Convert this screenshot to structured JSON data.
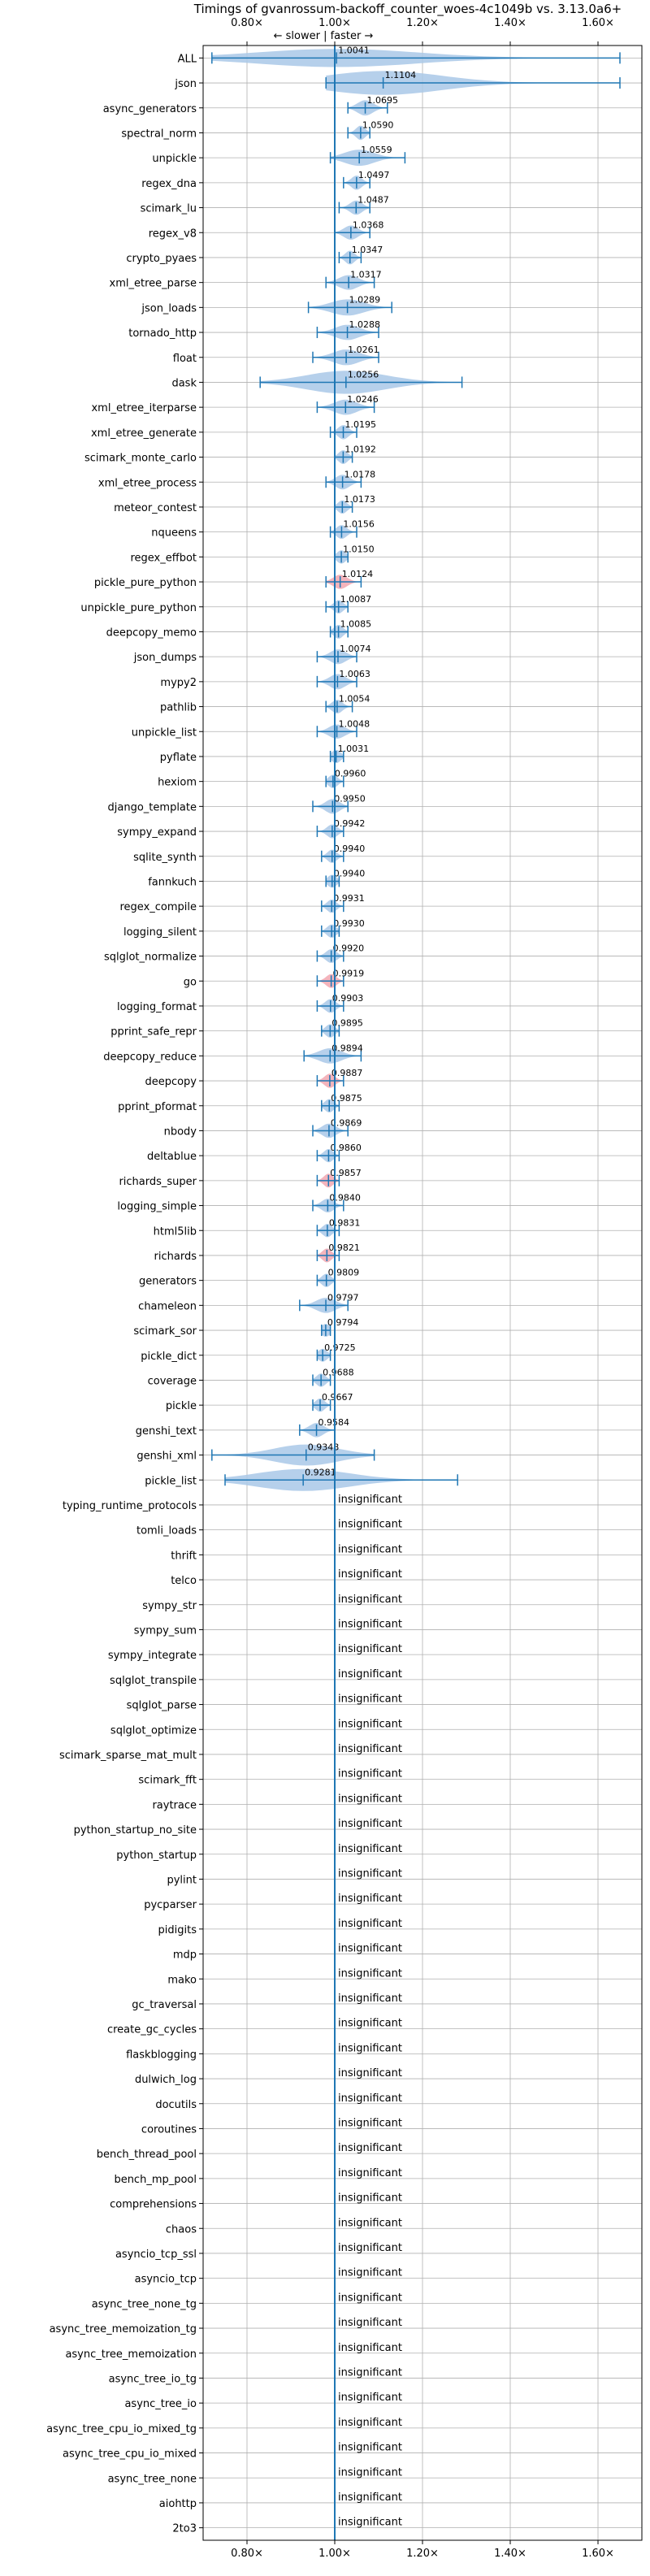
{
  "chart_data": {
    "type": "violin",
    "title": "Timings of gvanrossum-backoff_counter_woes-4c1049b vs. 3.13.0a6+",
    "direction_label": "← slower | faster →",
    "x_ticks": [
      "0.80×",
      "1.00×",
      "1.20×",
      "1.40×",
      "1.60×"
    ],
    "x_tick_values": [
      0.8,
      1.0,
      1.2,
      1.4,
      1.6
    ],
    "xlim": [
      0.7,
      1.7
    ],
    "grid": true,
    "insignificant_label": "insignificant",
    "colors": {
      "violin": "#a9c8e8",
      "violin_slower": "#f2a7b0",
      "line": "#1f77b4",
      "grid": "#b0b0b0"
    },
    "benchmarks": [
      {
        "name": "ALL",
        "value": 1.0041,
        "label": "1.0041",
        "min": 0.72,
        "max": 1.65,
        "spread": 0.07
      },
      {
        "name": "json",
        "value": 1.1104,
        "label": "1.1104",
        "min": 0.98,
        "max": 1.65,
        "spread": 0.15
      },
      {
        "name": "async_generators",
        "value": 1.0695,
        "label": "1.0695",
        "min": 1.03,
        "max": 1.12,
        "spread": 0.04
      },
      {
        "name": "spectral_norm",
        "value": 1.059,
        "label": "1.0590",
        "min": 1.03,
        "max": 1.08,
        "spread": 0.03
      },
      {
        "name": "unpickle",
        "value": 1.0559,
        "label": "1.0559",
        "min": 0.99,
        "max": 1.16,
        "spread": 0.05
      },
      {
        "name": "regex_dna",
        "value": 1.0497,
        "label": "1.0497",
        "min": 1.02,
        "max": 1.08,
        "spread": 0.03
      },
      {
        "name": "scimark_lu",
        "value": 1.0487,
        "label": "1.0487",
        "min": 1.01,
        "max": 1.08,
        "spread": 0.03
      },
      {
        "name": "regex_v8",
        "value": 1.0368,
        "label": "1.0368",
        "min": 1.0,
        "max": 1.08,
        "spread": 0.03
      },
      {
        "name": "crypto_pyaes",
        "value": 1.0347,
        "label": "1.0347",
        "min": 1.01,
        "max": 1.06,
        "spread": 0.025
      },
      {
        "name": "xml_etree_parse",
        "value": 1.0317,
        "label": "1.0317",
        "min": 0.98,
        "max": 1.09,
        "spread": 0.035
      },
      {
        "name": "json_loads",
        "value": 1.0289,
        "label": "1.0289",
        "min": 0.94,
        "max": 1.13,
        "spread": 0.05
      },
      {
        "name": "tornado_http",
        "value": 1.0288,
        "label": "1.0288",
        "min": 0.96,
        "max": 1.1,
        "spread": 0.04
      },
      {
        "name": "float",
        "value": 1.0261,
        "label": "1.0261",
        "min": 0.95,
        "max": 1.1,
        "spread": 0.045
      },
      {
        "name": "dask",
        "value": 1.0256,
        "label": "1.0256",
        "min": 0.83,
        "max": 1.29,
        "spread": 0.12
      },
      {
        "name": "xml_etree_iterparse",
        "value": 1.0246,
        "label": "1.0246",
        "min": 0.96,
        "max": 1.09,
        "spread": 0.04
      },
      {
        "name": "xml_etree_generate",
        "value": 1.0195,
        "label": "1.0195",
        "min": 0.99,
        "max": 1.05,
        "spread": 0.03
      },
      {
        "name": "scimark_monte_carlo",
        "value": 1.0192,
        "label": "1.0192",
        "min": 1.0,
        "max": 1.04,
        "spread": 0.025
      },
      {
        "name": "xml_etree_process",
        "value": 1.0178,
        "label": "1.0178",
        "min": 0.98,
        "max": 1.06,
        "spread": 0.035
      },
      {
        "name": "meteor_contest",
        "value": 1.0173,
        "label": "1.0173",
        "min": 1.0,
        "max": 1.04,
        "spread": 0.02
      },
      {
        "name": "nqueens",
        "value": 1.0156,
        "label": "1.0156",
        "min": 0.99,
        "max": 1.05,
        "spread": 0.025
      },
      {
        "name": "regex_effbot",
        "value": 1.015,
        "label": "1.0150",
        "min": 1.0,
        "max": 1.03,
        "spread": 0.02
      },
      {
        "name": "pickle_pure_python",
        "value": 1.0124,
        "label": "1.0124",
        "min": 0.98,
        "max": 1.06,
        "spread": 0.03,
        "slower": true
      },
      {
        "name": "unpickle_pure_python",
        "value": 1.0087,
        "label": "1.0087",
        "min": 0.98,
        "max": 1.03,
        "spread": 0.02
      },
      {
        "name": "deepcopy_memo",
        "value": 1.0085,
        "label": "1.0085",
        "min": 0.99,
        "max": 1.03,
        "spread": 0.025
      },
      {
        "name": "json_dumps",
        "value": 1.0074,
        "label": "1.0074",
        "min": 0.96,
        "max": 1.05,
        "spread": 0.035
      },
      {
        "name": "mypy2",
        "value": 1.0063,
        "label": "1.0063",
        "min": 0.96,
        "max": 1.05,
        "spread": 0.04
      },
      {
        "name": "pathlib",
        "value": 1.0054,
        "label": "1.0054",
        "min": 0.98,
        "max": 1.04,
        "spread": 0.025
      },
      {
        "name": "unpickle_list",
        "value": 1.0048,
        "label": "1.0048",
        "min": 0.96,
        "max": 1.05,
        "spread": 0.03
      },
      {
        "name": "pyflate",
        "value": 1.0031,
        "label": "1.0031",
        "min": 0.99,
        "max": 1.02,
        "spread": 0.02
      },
      {
        "name": "hexiom",
        "value": 0.996,
        "label": "0.9960",
        "min": 0.98,
        "max": 1.02,
        "spread": 0.02
      },
      {
        "name": "django_template",
        "value": 0.995,
        "label": "0.9950",
        "min": 0.95,
        "max": 1.03,
        "spread": 0.035
      },
      {
        "name": "sympy_expand",
        "value": 0.9942,
        "label": "0.9942",
        "min": 0.96,
        "max": 1.02,
        "spread": 0.025
      },
      {
        "name": "sqlite_synth",
        "value": 0.994,
        "label": "0.9940",
        "min": 0.97,
        "max": 1.02,
        "spread": 0.02
      },
      {
        "name": "fannkuch",
        "value": 0.994,
        "label": "0.9940",
        "min": 0.98,
        "max": 1.01,
        "spread": 0.015
      },
      {
        "name": "regex_compile",
        "value": 0.9931,
        "label": "0.9931",
        "min": 0.97,
        "max": 1.02,
        "spread": 0.02
      },
      {
        "name": "logging_silent",
        "value": 0.993,
        "label": "0.9930",
        "min": 0.97,
        "max": 1.01,
        "spread": 0.02
      },
      {
        "name": "sqlglot_normalize",
        "value": 0.992,
        "label": "0.9920",
        "min": 0.96,
        "max": 1.02,
        "spread": 0.025
      },
      {
        "name": "go",
        "value": 0.9919,
        "label": "0.9919",
        "min": 0.96,
        "max": 1.02,
        "spread": 0.025,
        "slower": true
      },
      {
        "name": "logging_format",
        "value": 0.9903,
        "label": "0.9903",
        "min": 0.96,
        "max": 1.02,
        "spread": 0.025
      },
      {
        "name": "pprint_safe_repr",
        "value": 0.9895,
        "label": "0.9895",
        "min": 0.97,
        "max": 1.01,
        "spread": 0.02
      },
      {
        "name": "deepcopy_reduce",
        "value": 0.9894,
        "label": "0.9894",
        "min": 0.93,
        "max": 1.06,
        "spread": 0.04
      },
      {
        "name": "deepcopy",
        "value": 0.9887,
        "label": "0.9887",
        "min": 0.96,
        "max": 1.02,
        "spread": 0.03,
        "slower": true
      },
      {
        "name": "pprint_pformat",
        "value": 0.9875,
        "label": "0.9875",
        "min": 0.97,
        "max": 1.01,
        "spread": 0.02
      },
      {
        "name": "nbody",
        "value": 0.9869,
        "label": "0.9869",
        "min": 0.95,
        "max": 1.03,
        "spread": 0.03
      },
      {
        "name": "deltablue",
        "value": 0.986,
        "label": "0.9860",
        "min": 0.96,
        "max": 1.01,
        "spread": 0.02
      },
      {
        "name": "richards_super",
        "value": 0.9857,
        "label": "0.9857",
        "min": 0.96,
        "max": 1.01,
        "spread": 0.025,
        "slower": true
      },
      {
        "name": "logging_simple",
        "value": 0.984,
        "label": "0.9840",
        "min": 0.95,
        "max": 1.02,
        "spread": 0.025
      },
      {
        "name": "html5lib",
        "value": 0.9831,
        "label": "0.9831",
        "min": 0.96,
        "max": 1.01,
        "spread": 0.02
      },
      {
        "name": "richards",
        "value": 0.9821,
        "label": "0.9821",
        "min": 0.96,
        "max": 1.01,
        "spread": 0.025,
        "slower": true
      },
      {
        "name": "generators",
        "value": 0.9809,
        "label": "0.9809",
        "min": 0.96,
        "max": 1.0,
        "spread": 0.02
      },
      {
        "name": "chameleon",
        "value": 0.9797,
        "label": "0.9797",
        "min": 0.92,
        "max": 1.03,
        "spread": 0.04
      },
      {
        "name": "scimark_sor",
        "value": 0.9794,
        "label": "0.9794",
        "min": 0.97,
        "max": 0.99,
        "spread": 0.015
      },
      {
        "name": "pickle_dict",
        "value": 0.9725,
        "label": "0.9725",
        "min": 0.96,
        "max": 0.99,
        "spread": 0.015
      },
      {
        "name": "coverage",
        "value": 0.9688,
        "label": "0.9688",
        "min": 0.95,
        "max": 0.99,
        "spread": 0.02
      },
      {
        "name": "pickle",
        "value": 0.9667,
        "label": "0.9667",
        "min": 0.95,
        "max": 0.99,
        "spread": 0.02
      },
      {
        "name": "genshi_text",
        "value": 0.9584,
        "label": "0.9584",
        "min": 0.92,
        "max": 1.0,
        "spread": 0.03
      },
      {
        "name": "genshi_xml",
        "value": 0.9348,
        "label": "0.9348",
        "min": 0.72,
        "max": 1.09,
        "spread": 0.1
      },
      {
        "name": "pickle_list",
        "value": 0.9281,
        "label": "0.9281",
        "min": 0.75,
        "max": 1.28,
        "spread": 0.11
      },
      {
        "name": "typing_runtime_protocols",
        "insignificant": true
      },
      {
        "name": "tomli_loads",
        "insignificant": true
      },
      {
        "name": "thrift",
        "insignificant": true
      },
      {
        "name": "telco",
        "insignificant": true
      },
      {
        "name": "sympy_str",
        "insignificant": true
      },
      {
        "name": "sympy_sum",
        "insignificant": true
      },
      {
        "name": "sympy_integrate",
        "insignificant": true
      },
      {
        "name": "sqlglot_transpile",
        "insignificant": true
      },
      {
        "name": "sqlglot_parse",
        "insignificant": true
      },
      {
        "name": "sqlglot_optimize",
        "insignificant": true
      },
      {
        "name": "scimark_sparse_mat_mult",
        "insignificant": true
      },
      {
        "name": "scimark_fft",
        "insignificant": true
      },
      {
        "name": "raytrace",
        "insignificant": true
      },
      {
        "name": "python_startup_no_site",
        "insignificant": true
      },
      {
        "name": "python_startup",
        "insignificant": true
      },
      {
        "name": "pylint",
        "insignificant": true
      },
      {
        "name": "pycparser",
        "insignificant": true
      },
      {
        "name": "pidigits",
        "insignificant": true
      },
      {
        "name": "mdp",
        "insignificant": true
      },
      {
        "name": "mako",
        "insignificant": true
      },
      {
        "name": "gc_traversal",
        "insignificant": true
      },
      {
        "name": "create_gc_cycles",
        "insignificant": true
      },
      {
        "name": "flaskblogging",
        "insignificant": true
      },
      {
        "name": "dulwich_log",
        "insignificant": true
      },
      {
        "name": "docutils",
        "insignificant": true
      },
      {
        "name": "coroutines",
        "insignificant": true
      },
      {
        "name": "bench_thread_pool",
        "insignificant": true
      },
      {
        "name": "bench_mp_pool",
        "insignificant": true
      },
      {
        "name": "comprehensions",
        "insignificant": true
      },
      {
        "name": "chaos",
        "insignificant": true
      },
      {
        "name": "asyncio_tcp_ssl",
        "insignificant": true
      },
      {
        "name": "asyncio_tcp",
        "insignificant": true
      },
      {
        "name": "async_tree_none_tg",
        "insignificant": true
      },
      {
        "name": "async_tree_memoization_tg",
        "insignificant": true
      },
      {
        "name": "async_tree_memoization",
        "insignificant": true
      },
      {
        "name": "async_tree_io_tg",
        "insignificant": true
      },
      {
        "name": "async_tree_io",
        "insignificant": true
      },
      {
        "name": "async_tree_cpu_io_mixed_tg",
        "insignificant": true
      },
      {
        "name": "async_tree_cpu_io_mixed",
        "insignificant": true
      },
      {
        "name": "async_tree_none",
        "insignificant": true
      },
      {
        "name": "aiohttp",
        "insignificant": true
      },
      {
        "name": "2to3",
        "insignificant": true
      }
    ]
  }
}
